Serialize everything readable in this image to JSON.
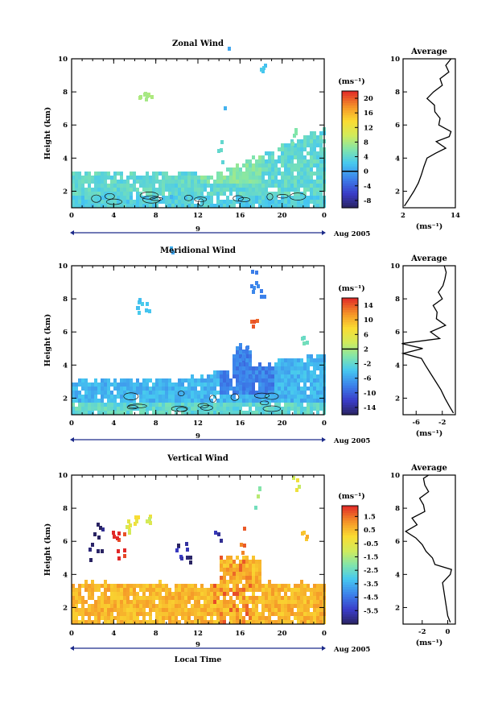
{
  "chart_data": [
    {
      "type": "heatmap",
      "title": "Zonal Wind",
      "ylabel": "Height (km)",
      "xticks": [
        "0",
        "4",
        "8",
        "12",
        "16",
        "20",
        "0"
      ],
      "yticks": [
        "2",
        "4",
        "6",
        "8",
        "10"
      ],
      "xlim": [
        0,
        24
      ],
      "ylim": [
        1,
        10
      ],
      "date_axis": {
        "day": "9",
        "month_year": "Aug 2005"
      },
      "colorbar": {
        "unit": "(ms⁻¹)",
        "ticks": [
          "20",
          "16",
          "12",
          "8",
          "4",
          "0",
          "-4",
          "-8"
        ],
        "range": [
          -10,
          22
        ],
        "zero_line": 0
      },
      "fill": {
        "mode": "zonal",
        "base_value": 4,
        "layer_top_km": 3.0
      },
      "profile": {
        "title": "Average",
        "xlabel": "(ms⁻¹)",
        "xticks": [
          "2",
          "14"
        ],
        "xlim": [
          2,
          14
        ],
        "height": [
          1.1,
          1.5,
          2.0,
          2.5,
          3.0,
          3.5,
          4.0,
          4.3,
          4.6,
          5.0,
          5.3,
          5.6,
          6.0,
          6.4,
          6.8,
          7.2,
          7.6,
          8.0,
          8.4,
          8.8,
          9.2,
          9.6,
          10.0
        ],
        "speed": [
          2.3,
          3.3,
          4.5,
          5.5,
          6.2,
          6.8,
          7.5,
          9.5,
          11.8,
          9.6,
          12.6,
          13.0,
          10.2,
          10.5,
          9.3,
          9.2,
          7.5,
          9.0,
          11.0,
          10.5,
          12.5,
          11.8,
          13.0
        ]
      }
    },
    {
      "type": "heatmap",
      "title": "Meridional Wind",
      "ylabel": "Height (km)",
      "xticks": [
        "0",
        "4",
        "8",
        "12",
        "16",
        "20",
        "0"
      ],
      "yticks": [
        "2",
        "4",
        "6",
        "8",
        "10"
      ],
      "xlim": [
        0,
        24
      ],
      "ylim": [
        1,
        10
      ],
      "date_axis": {
        "day": "9",
        "month_year": "Aug 2005"
      },
      "colorbar": {
        "unit": "(ms⁻¹)",
        "ticks": [
          "14",
          "10",
          "6",
          "2",
          "-2",
          "-6",
          "-10",
          "-14"
        ],
        "range": [
          -16,
          16
        ],
        "zero_line": 2
      },
      "fill": {
        "mode": "meridional",
        "base_value": -5,
        "layer_top_km": 3.0
      },
      "profile": {
        "title": "Average",
        "xlabel": "(ms⁻¹)",
        "xticks": [
          "-6",
          "-2"
        ],
        "xlim": [
          -8,
          0
        ],
        "height": [
          1.1,
          1.5,
          2.0,
          2.5,
          3.0,
          3.5,
          4.0,
          4.4,
          4.7,
          5.0,
          5.3,
          5.6,
          6.0,
          6.4,
          6.8,
          7.2,
          7.6,
          8.0,
          8.4,
          8.8,
          9.2,
          9.6,
          10.0
        ],
        "speed": [
          -0.3,
          -0.9,
          -1.6,
          -2.2,
          -3.0,
          -3.8,
          -4.6,
          -5.2,
          -8.0,
          -5.0,
          -8.2,
          -2.4,
          -3.8,
          -1.5,
          -2.9,
          -2.8,
          -3.4,
          -2.0,
          -2.6,
          -1.9,
          -1.6,
          -1.4,
          -1.7
        ]
      }
    },
    {
      "type": "heatmap",
      "title": "Vertical Wind",
      "ylabel": "Height (km)",
      "xlabel": "Local Time",
      "xticks": [
        "0",
        "4",
        "8",
        "12",
        "16",
        "20",
        "0"
      ],
      "yticks": [
        "2",
        "4",
        "6",
        "8",
        "10"
      ],
      "xlim": [
        0,
        24
      ],
      "ylim": [
        1,
        10
      ],
      "date_axis": {
        "day": "9",
        "month_year": "Aug 2005"
      },
      "colorbar": {
        "unit": "(ms⁻¹)",
        "ticks": [
          "1.5",
          "0.5",
          "-0.5",
          "-1.5",
          "-2.5",
          "-3.5",
          "-4.5",
          "-5.5"
        ],
        "range": [
          -6.5,
          2.3
        ]
      },
      "fill": {
        "mode": "vertical",
        "base_value": 0.6,
        "layer_top_km": 3.4
      },
      "profile": {
        "title": "Average",
        "xlabel": "(ms⁻¹)",
        "xticks": [
          "-2",
          "0"
        ],
        "xlim": [
          -3.5,
          0.6
        ],
        "height": [
          1.1,
          1.5,
          2.0,
          2.5,
          3.0,
          3.5,
          4.0,
          4.3,
          4.6,
          5.0,
          5.4,
          5.8,
          6.2,
          6.6,
          7.0,
          7.4,
          7.8,
          8.2,
          8.6,
          9.0,
          9.4,
          9.8,
          10.0
        ],
        "speed": [
          0.2,
          0.0,
          -0.1,
          -0.2,
          -0.3,
          -0.4,
          0.2,
          0.3,
          -1.0,
          -1.2,
          -1.7,
          -2.0,
          -2.5,
          -3.3,
          -2.4,
          -2.8,
          -1.8,
          -1.9,
          -2.2,
          -1.5,
          -1.8,
          -1.9,
          -1.5
        ]
      }
    }
  ],
  "xlabel": "Local Time"
}
